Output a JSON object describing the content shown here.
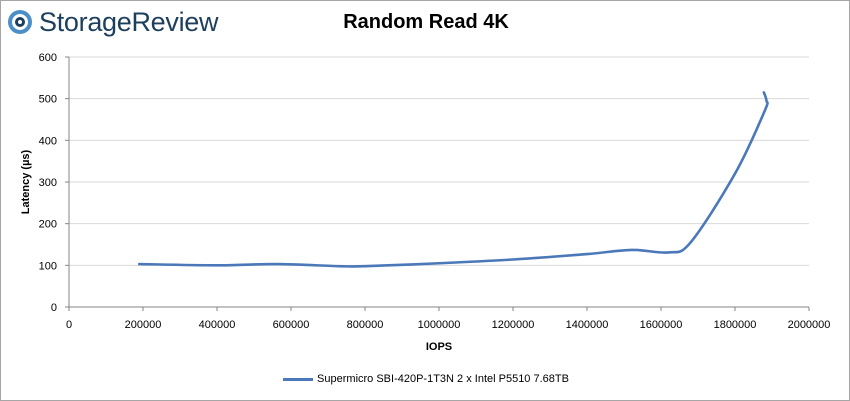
{
  "brand": {
    "name": "StorageReview"
  },
  "chart_data": {
    "type": "line",
    "title": "Random Read 4K",
    "xlabel": "IOPS",
    "ylabel": "Latency (µs)",
    "xlim": [
      0,
      2000000
    ],
    "ylim": [
      0,
      600
    ],
    "xticks": [
      0,
      200000,
      400000,
      600000,
      800000,
      1000000,
      1200000,
      1400000,
      1600000,
      1800000,
      2000000
    ],
    "yticks": [
      0,
      100,
      200,
      300,
      400,
      500,
      600
    ],
    "grid": "horizontal",
    "legend_position": "bottom",
    "series": [
      {
        "name": "Supermicro SBI-420P-1T3N 2 x Intel P5510 7.68TB",
        "color": "#4a78b8",
        "x": [
          190000,
          400000,
          560000,
          730000,
          800000,
          1000000,
          1200000,
          1400000,
          1520000,
          1620000,
          1680000,
          1800000,
          1880000,
          1885000,
          1878000
        ],
        "y": [
          103,
          100,
          103,
          98,
          98,
          105,
          114,
          127,
          137,
          131,
          155,
          320,
          470,
          495,
          515
        ]
      }
    ]
  }
}
